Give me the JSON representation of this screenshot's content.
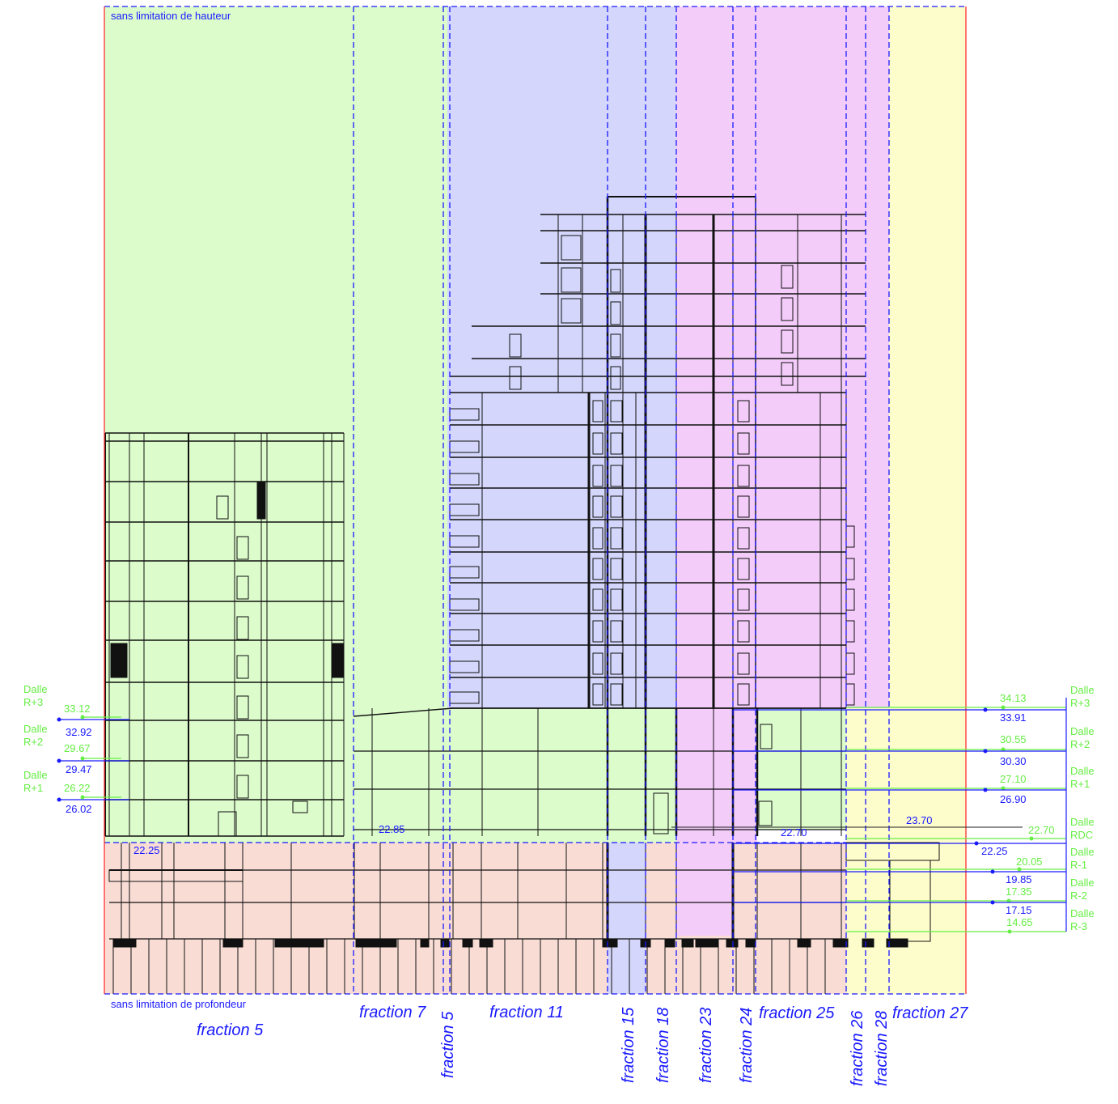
{
  "notes": {
    "top": "sans limitation de hauteur",
    "bottom": "sans limitation de profondeur"
  },
  "fractions": {
    "f5_main": "fraction 5",
    "f7": "fraction 7",
    "f5_narrow": "fraction 5",
    "f11": "fraction 11",
    "f15": "fraction 15",
    "f18": "fraction 18",
    "f23": "fraction 23",
    "f24": "fraction 24",
    "f25": "fraction 25",
    "f26": "fraction 26",
    "f28": "fraction 28",
    "f27": "fraction 27"
  },
  "left_levels": [
    {
      "name1": "Dalle",
      "name2": "R+3",
      "top": "33.12",
      "bottom": "32.92"
    },
    {
      "name1": "Dalle",
      "name2": "R+2",
      "top": "29.67",
      "bottom": "29.47"
    },
    {
      "name1": "Dalle",
      "name2": "R+1",
      "top": "26.22",
      "bottom": "26.02"
    }
  ],
  "right_levels": [
    {
      "name1": "Dalle",
      "name2": "R+3",
      "top": "34.13",
      "bottom": "33.91"
    },
    {
      "name1": "Dalle",
      "name2": "R+2",
      "top": "30.55",
      "bottom": "30.30"
    },
    {
      "name1": "Dalle",
      "name2": "R+1",
      "top": "27.10",
      "bottom": "26.90"
    },
    {
      "name1": "Dalle",
      "name2": "RDC",
      "top": "22.70",
      "bottom": "22.25"
    },
    {
      "name1": "Dalle",
      "name2": "R-1",
      "top": "20.05",
      "bottom": "19.85"
    },
    {
      "name1": "Dalle",
      "name2": "R-2",
      "top": "17.35",
      "bottom": "17.15"
    },
    {
      "name1": "Dalle",
      "name2": "R-3",
      "top": "14.65"
    }
  ],
  "inline_levels": {
    "left_base": "22.25",
    "podium": "22.85",
    "right_podium": "22.70",
    "ground_ref": "23.70"
  },
  "colors": {
    "green": "#dcfccc",
    "blue": "#d4d6fb",
    "pink": "#f3ccf9",
    "yellow": "#fdfdcc",
    "salmon": "#f9ddd5",
    "dash": "#1a1aff",
    "boundary": "#ff3030",
    "level_green": "#66ee44"
  }
}
